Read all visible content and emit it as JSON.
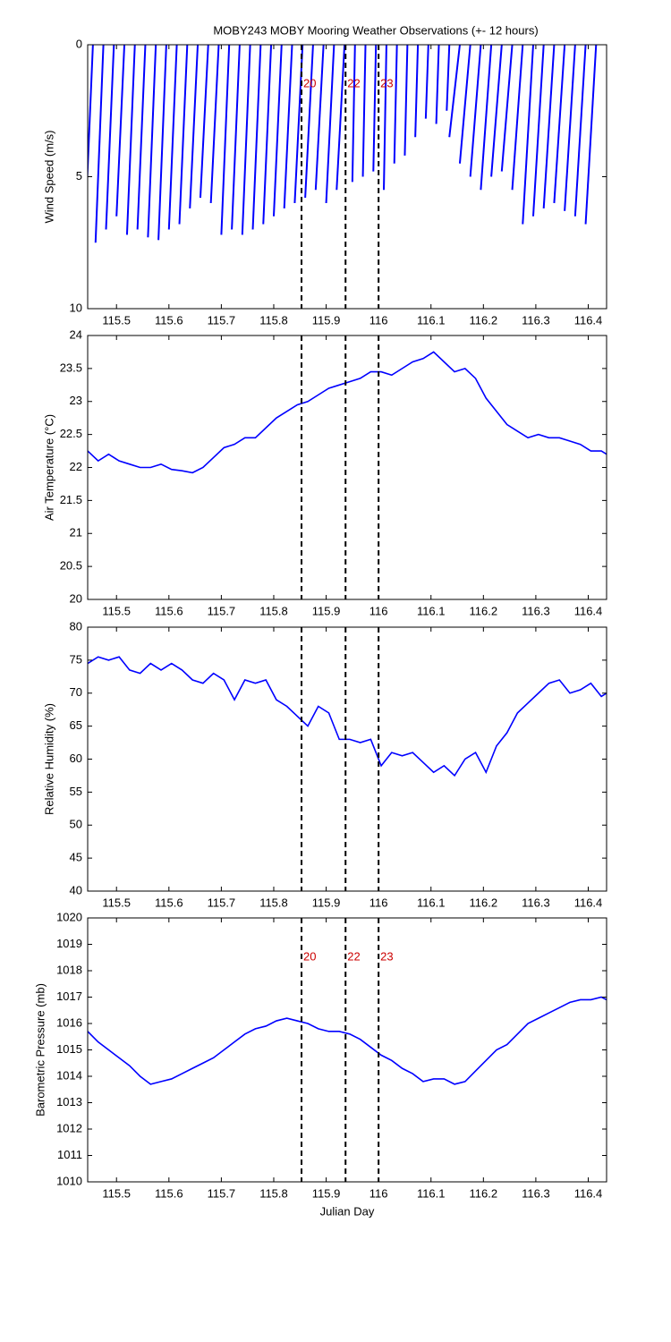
{
  "chart_data": [
    {
      "type": "stick",
      "title": "MOBY243 MOBY Mooring Weather Observations (+- 12 hours)",
      "ylabel": "Wind Speed (m/s)",
      "x": [
        115.455,
        115.475,
        115.495,
        115.515,
        115.535,
        115.555,
        115.575,
        115.595,
        115.615,
        115.635,
        115.655,
        115.675,
        115.695,
        115.715,
        115.735,
        115.755,
        115.775,
        115.795,
        115.815,
        115.835,
        115.855,
        115.875,
        115.895,
        115.915,
        115.935,
        115.955,
        115.975,
        115.995,
        116.015,
        116.035,
        116.055,
        116.075,
        116.095,
        116.115,
        116.135,
        116.155,
        116.175,
        116.195,
        116.215,
        116.235,
        116.255,
        116.275,
        116.295,
        116.315,
        116.335,
        116.355,
        116.375,
        116.395,
        116.415
      ],
      "x_end": [
        115.44,
        115.46,
        115.48,
        115.5,
        115.52,
        115.54,
        115.56,
        115.58,
        115.6,
        115.62,
        115.64,
        115.66,
        115.68,
        115.7,
        115.72,
        115.74,
        115.76,
        115.78,
        115.8,
        115.82,
        115.84,
        115.86,
        115.88,
        115.9,
        115.92,
        115.95,
        115.97,
        115.99,
        116.01,
        116.03,
        116.05,
        116.07,
        116.09,
        116.11,
        116.13,
        116.135,
        116.155,
        116.175,
        116.195,
        116.215,
        116.235,
        116.255,
        116.275,
        116.295,
        116.315,
        116.335,
        116.355,
        116.375,
        116.395
      ],
      "values": [
        7.0,
        7.5,
        7.0,
        6.5,
        7.2,
        7.0,
        7.3,
        7.4,
        7.0,
        6.8,
        6.2,
        5.8,
        6.0,
        7.2,
        7.0,
        7.2,
        7.0,
        6.8,
        6.5,
        6.2,
        6.0,
        5.8,
        5.5,
        6.0,
        5.5,
        5.2,
        5.0,
        4.8,
        5.5,
        4.5,
        4.2,
        3.5,
        2.8,
        3.0,
        2.5,
        3.5,
        4.5,
        5.0,
        5.5,
        5.0,
        4.8,
        5.5,
        6.8,
        6.5,
        6.2,
        6.0,
        6.3,
        6.5,
        6.8
      ],
      "color": "#0000ff",
      "xlim": [
        115.445,
        116.435
      ],
      "xticks": [
        115.5,
        115.6,
        115.7,
        115.8,
        115.9,
        116,
        116.1,
        116.2,
        116.3,
        116.4
      ],
      "ylim": [
        0,
        10
      ],
      "y_reversed": true,
      "yticks": [
        0,
        5,
        10
      ],
      "markers": [
        {
          "x": 115.853,
          "label": "20"
        },
        {
          "x": 115.937,
          "label": "22"
        },
        {
          "x": 116.0,
          "label": "23"
        }
      ],
      "marker_color": "#cc0000",
      "marker_labels": true
    },
    {
      "type": "line",
      "ylabel": "Air Temperature (°C)",
      "x": [
        115.445,
        115.465,
        115.485,
        115.505,
        115.525,
        115.545,
        115.565,
        115.585,
        115.605,
        115.625,
        115.645,
        115.665,
        115.685,
        115.705,
        115.725,
        115.745,
        115.765,
        115.785,
        115.805,
        115.825,
        115.845,
        115.865,
        115.885,
        115.905,
        115.925,
        115.945,
        115.965,
        115.985,
        116.005,
        116.025,
        116.045,
        116.065,
        116.085,
        116.105,
        116.125,
        116.145,
        116.165,
        116.185,
        116.205,
        116.225,
        116.245,
        116.265,
        116.285,
        116.305,
        116.325,
        116.345,
        116.365,
        116.385,
        116.405,
        116.425,
        116.435
      ],
      "values": [
        22.25,
        22.1,
        22.2,
        22.1,
        22.05,
        22.0,
        22.0,
        22.05,
        21.97,
        21.95,
        21.92,
        22.0,
        22.15,
        22.3,
        22.35,
        22.45,
        22.45,
        22.6,
        22.75,
        22.85,
        22.95,
        23.0,
        23.1,
        23.2,
        23.25,
        23.3,
        23.35,
        23.45,
        23.45,
        23.4,
        23.5,
        23.6,
        23.65,
        23.75,
        23.6,
        23.45,
        23.5,
        23.35,
        23.05,
        22.85,
        22.65,
        22.55,
        22.45,
        22.5,
        22.45,
        22.45,
        22.4,
        22.35,
        22.25,
        22.25,
        22.2
      ],
      "color": "#0000ff",
      "xlim": [
        115.445,
        116.435
      ],
      "xticks": [
        115.5,
        115.6,
        115.7,
        115.8,
        115.9,
        116,
        116.1,
        116.2,
        116.3,
        116.4
      ],
      "ylim": [
        20,
        24
      ],
      "yticks": [
        20,
        20.5,
        21,
        21.5,
        22,
        22.5,
        23,
        23.5,
        24
      ],
      "markers": [
        {
          "x": 115.853
        },
        {
          "x": 115.937
        },
        {
          "x": 116.0
        }
      ]
    },
    {
      "type": "line",
      "ylabel": "Relative Humidity (%)",
      "x": [
        115.445,
        115.465,
        115.485,
        115.505,
        115.525,
        115.545,
        115.565,
        115.585,
        115.605,
        115.625,
        115.645,
        115.665,
        115.685,
        115.705,
        115.725,
        115.745,
        115.765,
        115.785,
        115.805,
        115.825,
        115.845,
        115.865,
        115.885,
        115.905,
        115.925,
        115.945,
        115.965,
        115.985,
        116.005,
        116.025,
        116.045,
        116.065,
        116.085,
        116.105,
        116.125,
        116.145,
        116.165,
        116.185,
        116.205,
        116.225,
        116.245,
        116.265,
        116.285,
        116.305,
        116.325,
        116.345,
        116.365,
        116.385,
        116.405,
        116.425,
        116.435
      ],
      "values": [
        74.5,
        75.5,
        75,
        75.5,
        73.5,
        73,
        74.5,
        73.5,
        74.5,
        73.5,
        72,
        71.5,
        73,
        72,
        69,
        72,
        71.5,
        72,
        69,
        68,
        66.5,
        65,
        68,
        67,
        63,
        63,
        62.5,
        63,
        59,
        61,
        60.5,
        61,
        59.5,
        58,
        59,
        57.5,
        60,
        61,
        58,
        62,
        64,
        67,
        68.5,
        70,
        71.5,
        72,
        70,
        70.5,
        71.5,
        69.5,
        70
      ],
      "color": "#0000ff",
      "xlim": [
        115.445,
        116.435
      ],
      "xticks": [
        115.5,
        115.6,
        115.7,
        115.8,
        115.9,
        116,
        116.1,
        116.2,
        116.3,
        116.4
      ],
      "ylim": [
        40,
        80
      ],
      "yticks": [
        40,
        45,
        50,
        55,
        60,
        65,
        70,
        75,
        80
      ],
      "markers": [
        {
          "x": 115.853
        },
        {
          "x": 115.937
        },
        {
          "x": 116.0
        }
      ]
    },
    {
      "type": "line",
      "ylabel": "Barometric Pressure (mb)",
      "xlabel": "Julian Day",
      "x": [
        115.445,
        115.465,
        115.485,
        115.505,
        115.525,
        115.545,
        115.565,
        115.585,
        115.605,
        115.625,
        115.645,
        115.665,
        115.685,
        115.705,
        115.725,
        115.745,
        115.765,
        115.785,
        115.805,
        115.825,
        115.845,
        115.865,
        115.885,
        115.905,
        115.925,
        115.945,
        115.965,
        115.985,
        116.005,
        116.025,
        116.045,
        116.065,
        116.085,
        116.105,
        116.125,
        116.145,
        116.165,
        116.185,
        116.205,
        116.225,
        116.245,
        116.265,
        116.285,
        116.305,
        116.325,
        116.345,
        116.365,
        116.385,
        116.405,
        116.425,
        116.435
      ],
      "values": [
        1015.7,
        1015.3,
        1015.0,
        1014.7,
        1014.4,
        1014.0,
        1013.7,
        1013.8,
        1013.9,
        1014.1,
        1014.3,
        1014.5,
        1014.7,
        1015.0,
        1015.3,
        1015.6,
        1015.8,
        1015.9,
        1016.1,
        1016.2,
        1016.1,
        1016.0,
        1015.8,
        1015.7,
        1015.7,
        1015.6,
        1015.4,
        1015.1,
        1014.8,
        1014.6,
        1014.3,
        1014.1,
        1013.8,
        1013.9,
        1013.9,
        1013.7,
        1013.8,
        1014.2,
        1014.6,
        1015.0,
        1015.2,
        1015.6,
        1016.0,
        1016.2,
        1016.4,
        1016.6,
        1016.8,
        1016.9,
        1016.9,
        1017.0,
        1016.9
      ],
      "color": "#0000ff",
      "xlim": [
        115.445,
        116.435
      ],
      "xticks": [
        115.5,
        115.6,
        115.7,
        115.8,
        115.9,
        116,
        116.1,
        116.2,
        116.3,
        116.4
      ],
      "ylim": [
        1010,
        1020
      ],
      "yticks": [
        1010,
        1011,
        1012,
        1013,
        1014,
        1015,
        1016,
        1017,
        1018,
        1019,
        1020
      ],
      "markers": [
        {
          "x": 115.853,
          "label": "20"
        },
        {
          "x": 115.937,
          "label": "22"
        },
        {
          "x": 116.0,
          "label": "23"
        }
      ],
      "marker_color": "#cc0000",
      "marker_labels": true
    }
  ]
}
